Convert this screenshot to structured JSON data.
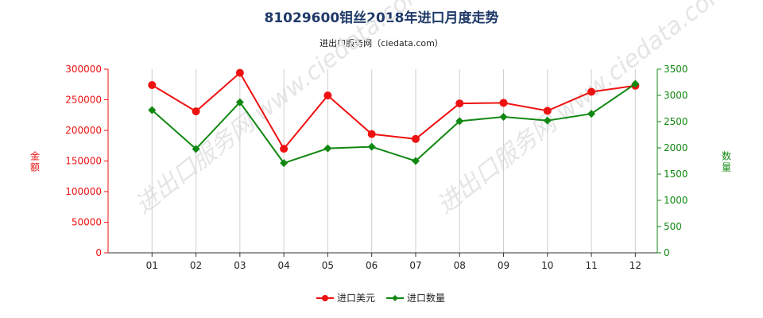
{
  "page": {
    "title": "81029600钼丝2018年进口月度走势",
    "subtitle": "进出口服务网（ciedata.com）",
    "watermark": "进出口服务网 www.ciedata.com"
  },
  "chart_data": {
    "type": "line",
    "title": "81029600钼丝2018年进口月度走势",
    "subtitle": "进出口服务网（ciedata.com）",
    "categories": [
      "01",
      "02",
      "03",
      "04",
      "05",
      "06",
      "07",
      "08",
      "09",
      "10",
      "11",
      "12"
    ],
    "ylabel_left": "金额",
    "ylabel_right": "数量",
    "yleft_lim": [
      0,
      300000
    ],
    "yleft_ticks": [
      0,
      50000,
      100000,
      150000,
      200000,
      250000,
      300000
    ],
    "yright_lim": [
      0,
      3500
    ],
    "yright_ticks": [
      0,
      500,
      1000,
      1500,
      2000,
      2500,
      3000,
      3500
    ],
    "grid": "vertical",
    "legend_position": "bottom",
    "series": [
      {
        "name": "进口美元",
        "axis": "left",
        "color": "#ee1111",
        "marker": "circle",
        "values": [
          274000,
          231000,
          294000,
          170000,
          257000,
          194000,
          186000,
          244000,
          245000,
          232000,
          263000,
          273000
        ]
      },
      {
        "name": "进口数量",
        "axis": "right",
        "color": "#118811",
        "marker": "diamond",
        "values": [
          2720,
          1980,
          2870,
          1710,
          1990,
          2020,
          1750,
          2510,
          2590,
          2520,
          2650,
          3220
        ]
      }
    ]
  }
}
